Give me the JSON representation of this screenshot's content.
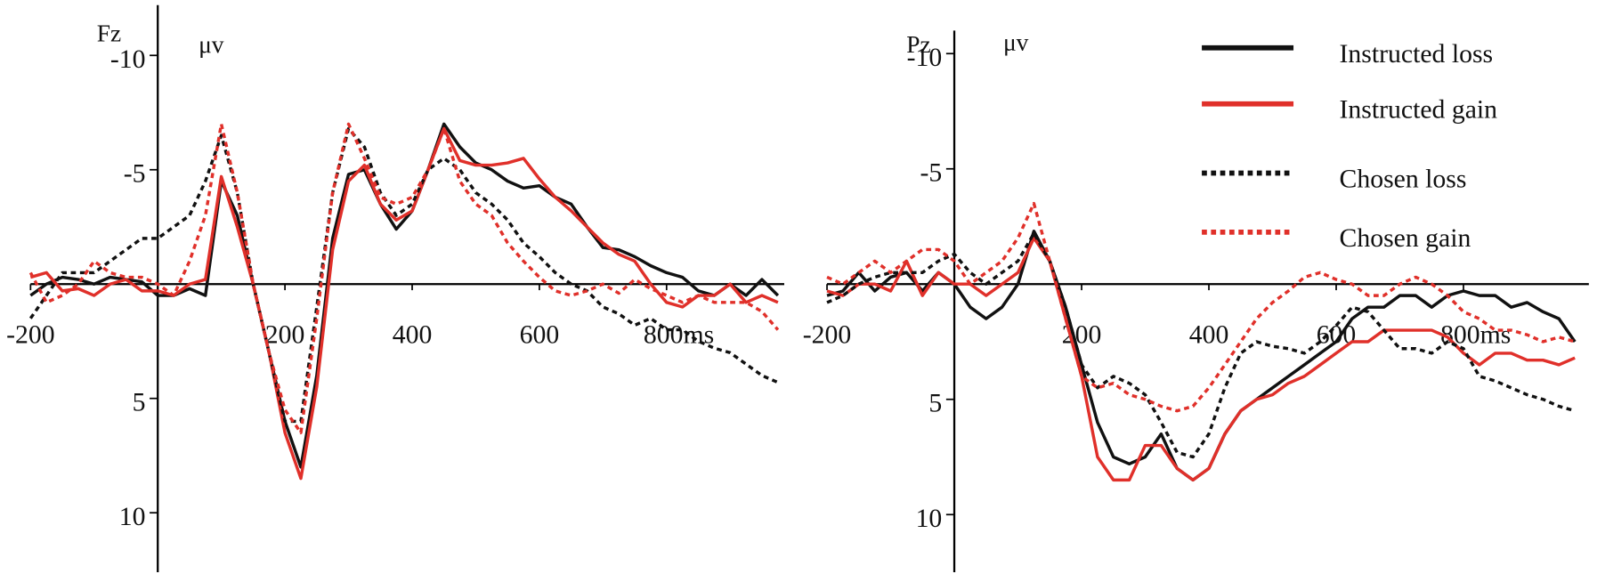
{
  "chart_data": [
    {
      "type": "line",
      "y_inverted": true,
      "xlabel": "Fz",
      "ylabel": "μv",
      "xlim": [
        -200,
        985
      ],
      "ylim": [
        -12.2,
        12.6
      ],
      "xticks": [
        -200,
        200,
        400,
        600,
        {
          "value": 800,
          "label": "800ms"
        }
      ],
      "yticks": [
        -10,
        -5,
        5,
        10
      ],
      "x": [
        -200,
        -175,
        -150,
        -125,
        -100,
        -75,
        -50,
        -25,
        0,
        25,
        50,
        75,
        100,
        125,
        150,
        175,
        200,
        225,
        250,
        275,
        300,
        325,
        350,
        375,
        400,
        425,
        450,
        475,
        500,
        525,
        550,
        575,
        600,
        625,
        650,
        675,
        700,
        725,
        750,
        775,
        800,
        825,
        850,
        875,
        900,
        925,
        950,
        975
      ],
      "series": [
        {
          "color": "#111111",
          "linestyle": "solid",
          "values": [
            0.5,
            0,
            -0.3,
            -0.2,
            0,
            -0.3,
            -0.2,
            -0.1,
            0.5,
            0.5,
            0.2,
            0.5,
            -4.5,
            -3,
            0,
            3,
            6,
            8,
            4,
            -2,
            -4.8,
            -5,
            -3.5,
            -2.4,
            -3.2,
            -5,
            -7,
            -6,
            -5.3,
            -5,
            -4.5,
            -4.2,
            -4.3,
            -3.8,
            -3.5,
            -2.5,
            -1.6,
            -1.5,
            -1.2,
            -0.8,
            -0.5,
            -0.3,
            0.3,
            0.5,
            0,
            0.5,
            -0.2,
            0.5
          ]
        },
        {
          "color": "#e0302a",
          "linestyle": "solid",
          "values": [
            -0.3,
            -0.5,
            0.3,
            0.2,
            0.5,
            0,
            -0.2,
            0.3,
            0.3,
            0.5,
            0,
            -0.2,
            -4.7,
            -2.5,
            0,
            3,
            6.5,
            8.5,
            4.5,
            -1.5,
            -4.5,
            -5.2,
            -3.5,
            -2.8,
            -3.2,
            -5,
            -6.8,
            -5.4,
            -5.2,
            -5.2,
            -5.3,
            -5.5,
            -4.6,
            -3.8,
            -3.2,
            -2.5,
            -1.8,
            -1.3,
            -1,
            0,
            0.8,
            1,
            0.5,
            0.5,
            0,
            0.8,
            0.5,
            0.8
          ]
        },
        {
          "color": "#111111",
          "linestyle": "dotted",
          "values": [
            1.5,
            0.5,
            -0.5,
            -0.5,
            -0.5,
            -1,
            -1.5,
            -2,
            -2,
            -2.5,
            -3,
            -4.5,
            -6.5,
            -4,
            0,
            3,
            6,
            6,
            1,
            -4,
            -6.8,
            -6,
            -4,
            -3,
            -3.5,
            -5,
            -5.5,
            -5,
            -4,
            -3.5,
            -2.8,
            -1.8,
            -1.2,
            -0.5,
            0,
            0.3,
            1,
            1.3,
            1.8,
            1.5,
            2,
            2,
            2.5,
            2.8,
            3,
            3.5,
            4,
            4.3
          ]
        },
        {
          "color": "#e0302a",
          "linestyle": "dotted",
          "values": [
            -0.5,
            0.8,
            0.5,
            0,
            -1,
            -0.5,
            -0.3,
            -0.3,
            0,
            0.5,
            -1,
            -3,
            -7,
            -4,
            0,
            3,
            5.5,
            6.5,
            1.5,
            -4,
            -7,
            -5.5,
            -3.8,
            -3.5,
            -3.8,
            -5,
            -6.8,
            -4.5,
            -3.5,
            -3,
            -1.8,
            -1,
            -0.3,
            0.3,
            0.5,
            0.3,
            0,
            0.4,
            -0.2,
            0.2,
            0.5,
            0.8,
            0.5,
            0.8,
            0.8,
            0.8,
            1.2,
            2
          ]
        }
      ]
    },
    {
      "type": "line",
      "y_inverted": true,
      "xlabel": "Pz",
      "ylabel": "μv",
      "legend": "upper right",
      "xlim": [
        -200,
        997
      ],
      "ylim": [
        -11,
        12.5
      ],
      "xticks": [
        -200,
        200,
        400,
        600,
        {
          "value": 800,
          "label": "800ms"
        }
      ],
      "yticks": [
        -10,
        -5,
        5,
        10
      ],
      "x": [
        -200,
        -175,
        -150,
        -125,
        -100,
        -75,
        -50,
        -25,
        0,
        25,
        50,
        75,
        100,
        125,
        150,
        175,
        200,
        225,
        250,
        275,
        300,
        325,
        350,
        375,
        400,
        425,
        450,
        475,
        500,
        525,
        550,
        575,
        600,
        625,
        650,
        675,
        700,
        725,
        750,
        775,
        800,
        825,
        850,
        875,
        900,
        925,
        950,
        975
      ],
      "series": [
        {
          "name": "Instructed loss",
          "color": "#111111",
          "linestyle": "solid",
          "values": [
            0.5,
            0.3,
            -0.5,
            0.3,
            -0.3,
            -0.5,
            0.3,
            -0.5,
            0,
            1,
            1.5,
            1,
            0,
            -2.3,
            -1,
            1,
            3.5,
            6,
            7.5,
            7.8,
            7.5,
            6.5,
            8,
            8.5,
            8,
            6.5,
            5.5,
            5,
            4.5,
            4,
            3.5,
            3,
            2.5,
            1.5,
            1,
            1,
            0.5,
            0.5,
            1,
            0.5,
            0.3,
            0.5,
            0.5,
            1,
            0.8,
            1.2,
            1.5,
            2.5
          ]
        },
        {
          "name": "Instructed gain",
          "color": "#e0302a",
          "linestyle": "solid",
          "values": [
            0.3,
            0.5,
            0,
            0,
            0.3,
            -1,
            0.5,
            -0.5,
            0,
            0,
            0.5,
            0,
            -0.5,
            -2,
            -1,
            1.5,
            4,
            7.5,
            8.5,
            8.5,
            7,
            7,
            8,
            8.5,
            8,
            6.5,
            5.5,
            5,
            4.8,
            4.3,
            4,
            3.5,
            3,
            2.5,
            2.5,
            2,
            2,
            2,
            2,
            2.3,
            3,
            3.5,
            3,
            3,
            3.3,
            3.3,
            3.5,
            3.2
          ]
        },
        {
          "name": "Chosen loss",
          "color": "#111111",
          "linestyle": "dotted",
          "values": [
            0.8,
            0.5,
            0,
            -0.3,
            -0.5,
            -0.5,
            -0.5,
            -1,
            -1.3,
            -0.5,
            0,
            -0.5,
            -1,
            -2.2,
            -1,
            1,
            3.5,
            4.5,
            4,
            4.3,
            4.8,
            6,
            7.3,
            7.5,
            6.5,
            4.5,
            3,
            2.5,
            2.7,
            2.8,
            3,
            2.5,
            1.8,
            1,
            1.2,
            2,
            2.8,
            2.8,
            3,
            2.5,
            2.8,
            4,
            4.2,
            4.5,
            4.8,
            5,
            5.3,
            5.5
          ]
        },
        {
          "name": "Chosen gain",
          "color": "#e0302a",
          "linestyle": "dotted",
          "values": [
            -0.3,
            0,
            -0.5,
            -1,
            -0.5,
            -1,
            -1.5,
            -1.5,
            -1,
            0,
            -0.5,
            -1,
            -2,
            -3.5,
            -1,
            1.5,
            4,
            4.5,
            4.3,
            4.8,
            5,
            5.3,
            5.5,
            5.3,
            4.5,
            3.5,
            2.5,
            1.5,
            0.8,
            0.3,
            -0.3,
            -0.5,
            -0.2,
            0,
            0.5,
            0.5,
            0,
            -0.3,
            0,
            0.5,
            1.2,
            1.5,
            2,
            2,
            2.2,
            2.5,
            2.3,
            2.5
          ]
        }
      ]
    }
  ]
}
